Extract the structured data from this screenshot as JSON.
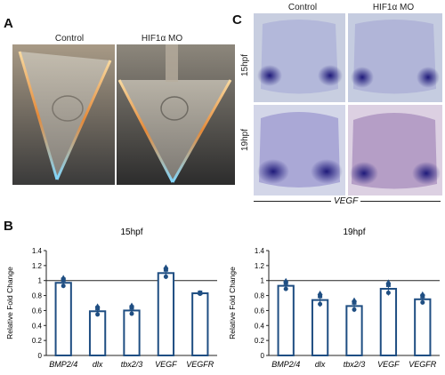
{
  "panels": {
    "a": {
      "letter": "A",
      "labels": [
        "Control",
        "HIF1α MO"
      ]
    },
    "c": {
      "letter": "C",
      "col_labels": [
        "Control",
        "HIF1α MO"
      ],
      "row_labels": [
        "15hpf",
        "19hpf"
      ],
      "gene_label": "VEGF"
    },
    "b": {
      "letter": "B"
    }
  },
  "chart_data": [
    {
      "type": "bar",
      "title": "15hpf",
      "ylabel": "Relative Fold Change",
      "categories": [
        "BMP2/4",
        "dlx",
        "tbx2/3",
        "VEGF",
        "VEGFR"
      ],
      "values": [
        0.97,
        0.59,
        0.6,
        1.1,
        0.83
      ],
      "errors": [
        0.07,
        0.07,
        0.07,
        0.08,
        0.01
      ],
      "ylim": [
        0,
        1.4
      ],
      "yticks": [
        "0",
        "0.2",
        "0.4",
        "0.6",
        "0.8",
        "1",
        "1.2",
        "1.4"
      ],
      "reference_line": 1,
      "colors": {
        "bar_edge": "#1f4e82",
        "marker": "#1f4e82"
      }
    },
    {
      "type": "bar",
      "title": "19hpf",
      "ylabel": "Relative Fold Change",
      "categories": [
        "BMP2/4",
        "dlx",
        "tbx2/3",
        "VEGF",
        "VEGFR"
      ],
      "values": [
        0.93,
        0.74,
        0.66,
        0.89,
        0.75
      ],
      "errors": [
        0.07,
        0.09,
        0.08,
        0.09,
        0.07
      ],
      "ylim": [
        0,
        1.4
      ],
      "yticks": [
        "0",
        "0.2",
        "0.4",
        "0.6",
        "0.8",
        "1",
        "1.2",
        "1.4"
      ],
      "reference_line": 1,
      "colors": {
        "bar_edge": "#1f4e82",
        "marker": "#1f4e82"
      }
    }
  ]
}
